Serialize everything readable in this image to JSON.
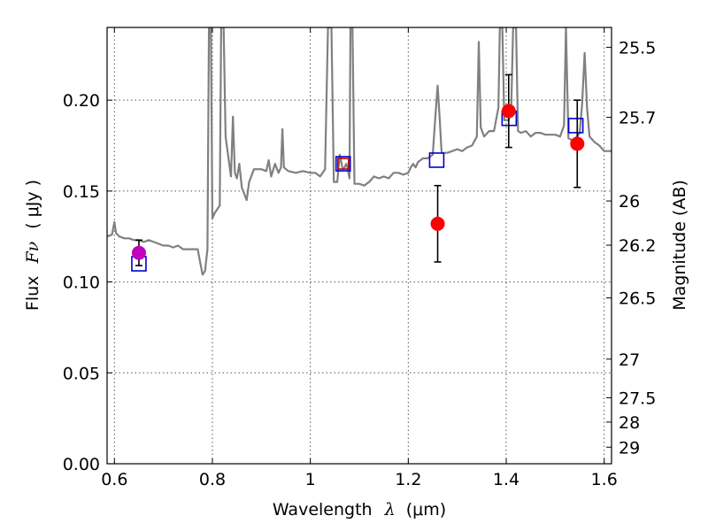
{
  "chart_data": {
    "type": "scatter",
    "xlabel": "Wavelength",
    "xlabel_symbol": "λ",
    "xlabel_unit": "(μm)",
    "ylabel": "Flux",
    "ylabel_symbol": "Fν",
    "ylabel_unit": "( μJy )",
    "y2label": "Magnitude (AB)",
    "xlim": [
      0.585,
      1.615
    ],
    "ylim": [
      0.0,
      0.24
    ],
    "x_ticks": [
      0.6,
      0.8,
      1.0,
      1.2,
      1.4,
      1.6
    ],
    "x_tick_labels": [
      "0.6",
      "0.8",
      "1",
      "1.2",
      "1.4",
      "1.6"
    ],
    "y_ticks": [
      0.0,
      0.05,
      0.1,
      0.15,
      0.2
    ],
    "y_tick_labels": [
      "0.00",
      "0.05",
      "0.10",
      "0.15",
      "0.20"
    ],
    "y2_ticks": [
      25.5,
      25.7,
      26.0,
      26.2,
      26.5,
      27.0,
      27.5,
      28.0,
      29.0
    ],
    "y2_tick_labels": [
      "25.5",
      "25.7",
      "26",
      "26.2",
      "26.5",
      "27",
      "27.5",
      "28",
      "29"
    ],
    "grid": true,
    "colors": {
      "model": "#808080",
      "observed": "#ff0000",
      "observed_first": "#bf00bf",
      "model_point": "#0000cc",
      "model_point_overlap": "#bf0000",
      "errorbar": "#000000"
    },
    "model_spectrum": [
      [
        0.585,
        0.125
      ],
      [
        0.595,
        0.126
      ],
      [
        0.6,
        0.133
      ],
      [
        0.603,
        0.127
      ],
      [
        0.61,
        0.125
      ],
      [
        0.62,
        0.124
      ],
      [
        0.63,
        0.124
      ],
      [
        0.64,
        0.123
      ],
      [
        0.65,
        0.123
      ],
      [
        0.66,
        0.122
      ],
      [
        0.67,
        0.123
      ],
      [
        0.68,
        0.122
      ],
      [
        0.69,
        0.121
      ],
      [
        0.7,
        0.12
      ],
      [
        0.71,
        0.12
      ],
      [
        0.72,
        0.119
      ],
      [
        0.73,
        0.12
      ],
      [
        0.74,
        0.118
      ],
      [
        0.75,
        0.118
      ],
      [
        0.76,
        0.118
      ],
      [
        0.77,
        0.118
      ],
      [
        0.775,
        0.111
      ],
      [
        0.78,
        0.104
      ],
      [
        0.785,
        0.106
      ],
      [
        0.79,
        0.118
      ],
      [
        0.793,
        0.24
      ],
      [
        0.797,
        0.24
      ],
      [
        0.8,
        0.135
      ],
      [
        0.805,
        0.138
      ],
      [
        0.81,
        0.14
      ],
      [
        0.815,
        0.142
      ],
      [
        0.818,
        0.24
      ],
      [
        0.823,
        0.24
      ],
      [
        0.827,
        0.18
      ],
      [
        0.833,
        0.168
      ],
      [
        0.838,
        0.158
      ],
      [
        0.842,
        0.191
      ],
      [
        0.846,
        0.16
      ],
      [
        0.85,
        0.157
      ],
      [
        0.855,
        0.165
      ],
      [
        0.86,
        0.152
      ],
      [
        0.87,
        0.145
      ],
      [
        0.875,
        0.155
      ],
      [
        0.885,
        0.162
      ],
      [
        0.9,
        0.162
      ],
      [
        0.91,
        0.161
      ],
      [
        0.915,
        0.167
      ],
      [
        0.92,
        0.158
      ],
      [
        0.928,
        0.165
      ],
      [
        0.935,
        0.16
      ],
      [
        0.94,
        0.163
      ],
      [
        0.943,
        0.184
      ],
      [
        0.946,
        0.163
      ],
      [
        0.955,
        0.161
      ],
      [
        0.97,
        0.16
      ],
      [
        0.985,
        0.161
      ],
      [
        1.0,
        0.16
      ],
      [
        1.01,
        0.16
      ],
      [
        1.02,
        0.158
      ],
      [
        1.03,
        0.162
      ],
      [
        1.036,
        0.24
      ],
      [
        1.043,
        0.24
      ],
      [
        1.048,
        0.155
      ],
      [
        1.055,
        0.155
      ],
      [
        1.06,
        0.17
      ],
      [
        1.066,
        0.162
      ],
      [
        1.07,
        0.163
      ],
      [
        1.073,
        0.165
      ],
      [
        1.076,
        0.163
      ],
      [
        1.08,
        0.157
      ],
      [
        1.082,
        0.24
      ],
      [
        1.086,
        0.24
      ],
      [
        1.09,
        0.154
      ],
      [
        1.1,
        0.154
      ],
      [
        1.11,
        0.153
      ],
      [
        1.12,
        0.155
      ],
      [
        1.13,
        0.158
      ],
      [
        1.14,
        0.157
      ],
      [
        1.15,
        0.158
      ],
      [
        1.16,
        0.157
      ],
      [
        1.17,
        0.16
      ],
      [
        1.18,
        0.16
      ],
      [
        1.19,
        0.159
      ],
      [
        1.2,
        0.16
      ],
      [
        1.205,
        0.163
      ],
      [
        1.21,
        0.165
      ],
      [
        1.215,
        0.163
      ],
      [
        1.22,
        0.166
      ],
      [
        1.23,
        0.168
      ],
      [
        1.24,
        0.168
      ],
      [
        1.25,
        0.17
      ],
      [
        1.255,
        0.19
      ],
      [
        1.26,
        0.208
      ],
      [
        1.264,
        0.19
      ],
      [
        1.268,
        0.171
      ],
      [
        1.28,
        0.171
      ],
      [
        1.29,
        0.172
      ],
      [
        1.3,
        0.173
      ],
      [
        1.31,
        0.172
      ],
      [
        1.32,
        0.174
      ],
      [
        1.33,
        0.175
      ],
      [
        1.34,
        0.18
      ],
      [
        1.344,
        0.232
      ],
      [
        1.348,
        0.185
      ],
      [
        1.355,
        0.18
      ],
      [
        1.365,
        0.183
      ],
      [
        1.375,
        0.183
      ],
      [
        1.384,
        0.196
      ],
      [
        1.387,
        0.24
      ],
      [
        1.392,
        0.24
      ],
      [
        1.396,
        0.189
      ],
      [
        1.405,
        0.189
      ],
      [
        1.41,
        0.194
      ],
      [
        1.414,
        0.24
      ],
      [
        1.42,
        0.24
      ],
      [
        1.424,
        0.183
      ],
      [
        1.43,
        0.182
      ],
      [
        1.44,
        0.183
      ],
      [
        1.45,
        0.18
      ],
      [
        1.46,
        0.182
      ],
      [
        1.47,
        0.182
      ],
      [
        1.48,
        0.181
      ],
      [
        1.49,
        0.181
      ],
      [
        1.5,
        0.181
      ],
      [
        1.51,
        0.18
      ],
      [
        1.518,
        0.186
      ],
      [
        1.522,
        0.24
      ],
      [
        1.527,
        0.179
      ],
      [
        1.535,
        0.178
      ],
      [
        1.545,
        0.18
      ],
      [
        1.55,
        0.182
      ],
      [
        1.555,
        0.198
      ],
      [
        1.56,
        0.226
      ],
      [
        1.565,
        0.196
      ],
      [
        1.57,
        0.18
      ],
      [
        1.58,
        0.177
      ],
      [
        1.59,
        0.175
      ],
      [
        1.6,
        0.172
      ],
      [
        1.61,
        0.172
      ],
      [
        1.615,
        0.172
      ]
    ],
    "observed": [
      {
        "x": 0.65,
        "y": 0.116,
        "yerr": 0.007
      },
      {
        "x": 1.065,
        "y": 0.165,
        "yerr": 0.0
      },
      {
        "x": 1.26,
        "y": 0.132,
        "yerr": 0.021
      },
      {
        "x": 1.405,
        "y": 0.194,
        "yerr": 0.02
      },
      {
        "x": 1.545,
        "y": 0.176,
        "yerr": 0.024
      }
    ],
    "model_points": [
      {
        "x": 0.65,
        "y": 0.11
      },
      {
        "x": 1.067,
        "y": 0.165
      },
      {
        "x": 1.258,
        "y": 0.167
      },
      {
        "x": 1.406,
        "y": 0.19
      },
      {
        "x": 1.542,
        "y": 0.186
      }
    ]
  }
}
